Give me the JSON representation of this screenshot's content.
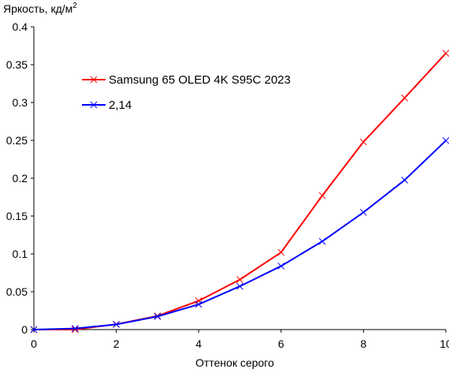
{
  "chart_data": {
    "type": "line",
    "title": "",
    "ylabel": "Яркость, кд/м",
    "ylabel_sup": "2",
    "xlabel": "Оттенок серого",
    "xlim": [
      0,
      10
    ],
    "ylim": [
      0,
      0.4
    ],
    "x_ticks": [
      0,
      2,
      4,
      6,
      8,
      10
    ],
    "x_tick_labels": [
      "0",
      "2",
      "4",
      "6",
      "8",
      "10"
    ],
    "y_ticks": [
      0,
      0.05,
      0.1,
      0.15,
      0.2,
      0.25,
      0.3,
      0.35,
      0.4
    ],
    "y_tick_labels": [
      "0",
      "0.05",
      "0.1",
      "0.15",
      "0.2",
      "0.25",
      "0.3",
      "0.35",
      "0.4"
    ],
    "grid": false,
    "legend_position": "top-left",
    "x": [
      0,
      1,
      2,
      3,
      4,
      5,
      6,
      7,
      8,
      9,
      10
    ],
    "series": [
      {
        "name": "Samsung 65 OLED 4K S95C 2023",
        "color": "#ff0000",
        "marker": "x",
        "values": [
          0,
          0,
          0.007,
          0.018,
          0.038,
          0.066,
          0.102,
          0.177,
          0.248,
          0.306,
          0.365
        ]
      },
      {
        "name": "2,14",
        "color": "#0000ff",
        "marker": "x",
        "values": [
          0,
          0.0014,
          0.0068,
          0.0173,
          0.0333,
          0.0572,
          0.0839,
          0.1165,
          0.1549,
          0.1975,
          0.2497
        ]
      }
    ]
  }
}
